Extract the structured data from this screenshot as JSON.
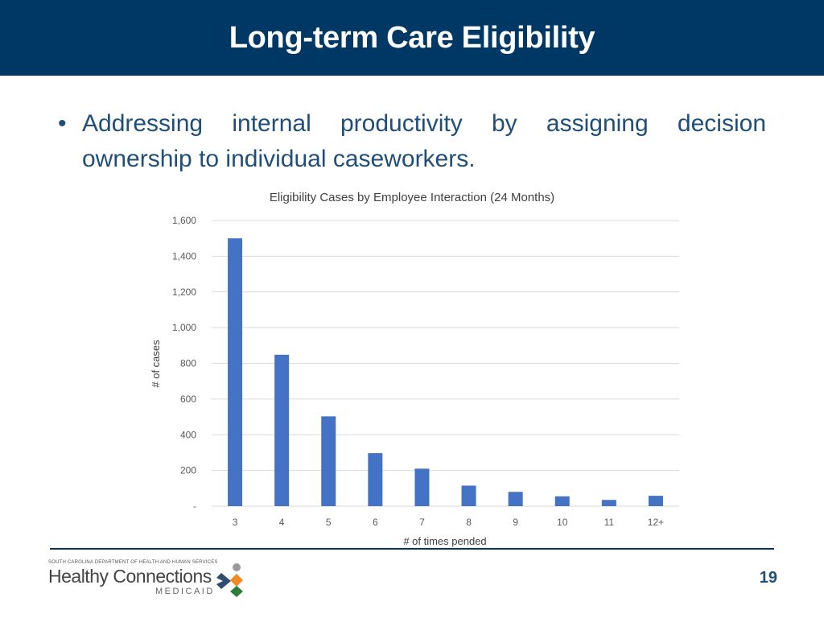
{
  "slide": {
    "title": "Long-term Care Eligibility",
    "bullet": "Addressing internal productivity by assigning decision ownership to individual caseworkers.",
    "page_number": "19"
  },
  "logo": {
    "agency": "SOUTH CAROLINA DEPARTMENT OF HEALTH AND HUMAN SERVICES",
    "name": "Healthy Connections",
    "program": "MEDICAID"
  },
  "colors": {
    "header": "#003865",
    "bar": "#4472C4",
    "bullet_text": "#1f4e79"
  },
  "chart_data": {
    "type": "bar",
    "title": "Eligibility Cases by Employee Interaction (24 Months)",
    "xlabel": "# of times pended",
    "ylabel": "# of cases",
    "categories": [
      "3",
      "4",
      "5",
      "6",
      "7",
      "8",
      "9",
      "10",
      "11",
      "12+"
    ],
    "values": [
      1500,
      848,
      503,
      297,
      210,
      115,
      80,
      55,
      35,
      58
    ],
    "ylim": [
      0,
      1600
    ],
    "yticks": [
      0,
      200,
      400,
      600,
      800,
      1000,
      1200,
      1400,
      1600
    ],
    "ytick_labels": [
      "-",
      "200",
      "400",
      "600",
      "800",
      "1,000",
      "1,200",
      "1,400",
      "1,600"
    ],
    "grid": true,
    "legend": "none"
  }
}
